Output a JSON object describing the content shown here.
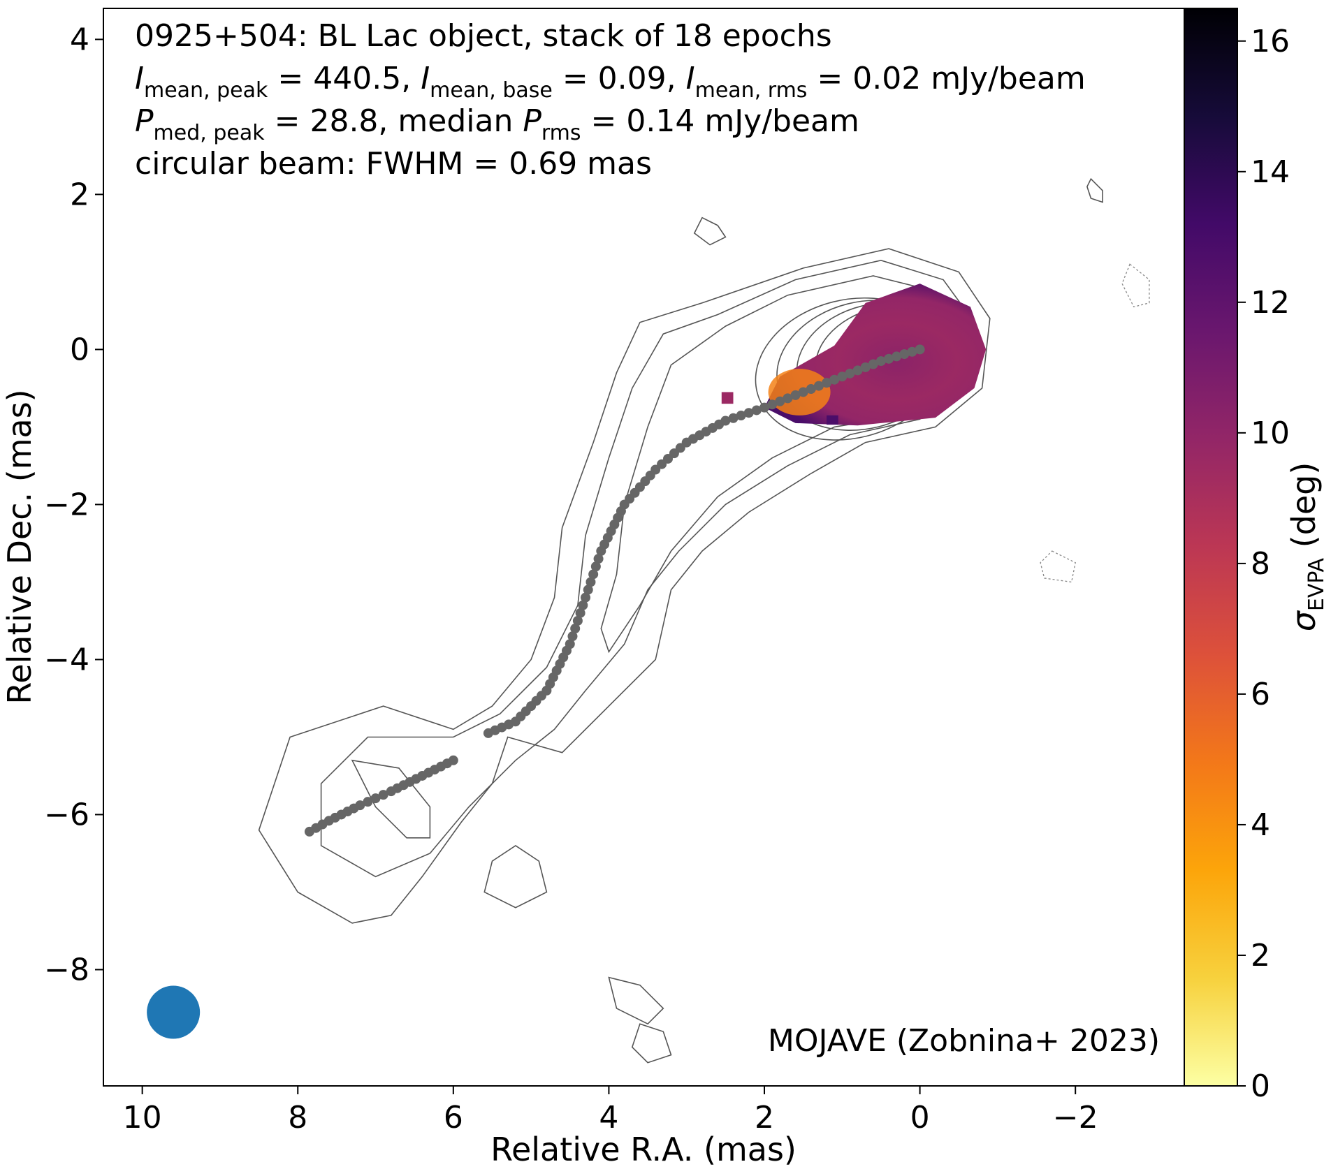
{
  "chart_data": {
    "type": "heatmap",
    "xlabel": "Relative R.A. (mas)",
    "ylabel": "Relative Dec. (mas)",
    "xlim": [
      10.5,
      -3.4
    ],
    "ylim": [
      -9.5,
      4.4
    ],
    "xticks": [
      10,
      8,
      6,
      4,
      2,
      0,
      -2
    ],
    "yticks": [
      4,
      2,
      0,
      -2,
      -4,
      -6,
      -8
    ],
    "xtick_labels": [
      "10",
      "8",
      "6",
      "4",
      "2",
      "0",
      "−2"
    ],
    "ytick_labels": [
      "4",
      "2",
      "0",
      "−2",
      "−4",
      "−6",
      "−8"
    ],
    "colorbar": {
      "label_symbol": "σ",
      "label_subscript": "EVPA",
      "label_unit": " (deg)",
      "range": [
        0,
        16.5
      ],
      "ticks": [
        0,
        2,
        4,
        6,
        8,
        10,
        12,
        14,
        16
      ],
      "tick_labels": [
        "0",
        "2",
        "4",
        "6",
        "8",
        "10",
        "12",
        "14",
        "16"
      ],
      "colormap": [
        "#fcffa4",
        "#f7d13d",
        "#fca50a",
        "#f37819",
        "#dd513a",
        "#bc3754",
        "#932667",
        "#6a176e",
        "#420a68",
        "#160b39",
        "#000004"
      ]
    },
    "annotation_lines": [
      [
        {
          "t": "0925+504: BL Lac object, stack of 18 epochs"
        }
      ],
      [
        {
          "t": "I",
          "style": "italic"
        },
        {
          "t": "mean, peak",
          "sub": true
        },
        {
          "t": " = 440.5, "
        },
        {
          "t": "I",
          "style": "italic"
        },
        {
          "t": "mean, base",
          "sub": true
        },
        {
          "t": " = 0.09, "
        },
        {
          "t": "I",
          "style": "italic"
        },
        {
          "t": "mean, rms",
          "sub": true
        },
        {
          "t": " = 0.02 mJy/beam"
        }
      ],
      [
        {
          "t": "P",
          "style": "italic"
        },
        {
          "t": "med, peak",
          "sub": true
        },
        {
          "t": " = 28.8, median "
        },
        {
          "t": "P",
          "style": "italic"
        },
        {
          "t": "rms",
          "sub": true
        },
        {
          "t": " = 0.14 mJy/beam"
        }
      ],
      [
        {
          "t": "circular beam: FWHM = 0.69 mas"
        }
      ]
    ],
    "credit": "MOJAVE (Zobnina+ 2023)",
    "beam": {
      "ra": 9.6,
      "dec": -8.55,
      "fwhm_mas": 0.69,
      "color": "#1f77b4"
    },
    "ridge_line": {
      "color": "#666666",
      "segments": [
        [
          [
            0.0,
            0.0
          ],
          [
            0.5,
            -0.15
          ],
          [
            1.0,
            -0.35
          ],
          [
            1.5,
            -0.55
          ],
          [
            2.0,
            -0.75
          ],
          [
            2.5,
            -0.92
          ],
          [
            3.0,
            -1.2
          ],
          [
            3.4,
            -1.55
          ],
          [
            3.8,
            -2.0
          ],
          [
            4.1,
            -2.6
          ],
          [
            4.3,
            -3.2
          ],
          [
            4.5,
            -3.8
          ],
          [
            4.8,
            -4.4
          ],
          [
            5.2,
            -4.8
          ],
          [
            5.55,
            -4.95
          ]
        ],
        [
          [
            6.0,
            -5.3
          ],
          [
            6.4,
            -5.5
          ],
          [
            6.8,
            -5.7
          ],
          [
            7.2,
            -5.88
          ],
          [
            7.6,
            -6.08
          ],
          [
            7.85,
            -6.22
          ]
        ]
      ]
    },
    "evpa_region": {
      "center_ra": -0.05,
      "center_dec": -0.15,
      "value_range": [
        3,
        14
      ]
    },
    "contours": {
      "core_center": [
        0.0,
        0.0
      ],
      "positive_levels": 10,
      "negative_present": true
    }
  }
}
